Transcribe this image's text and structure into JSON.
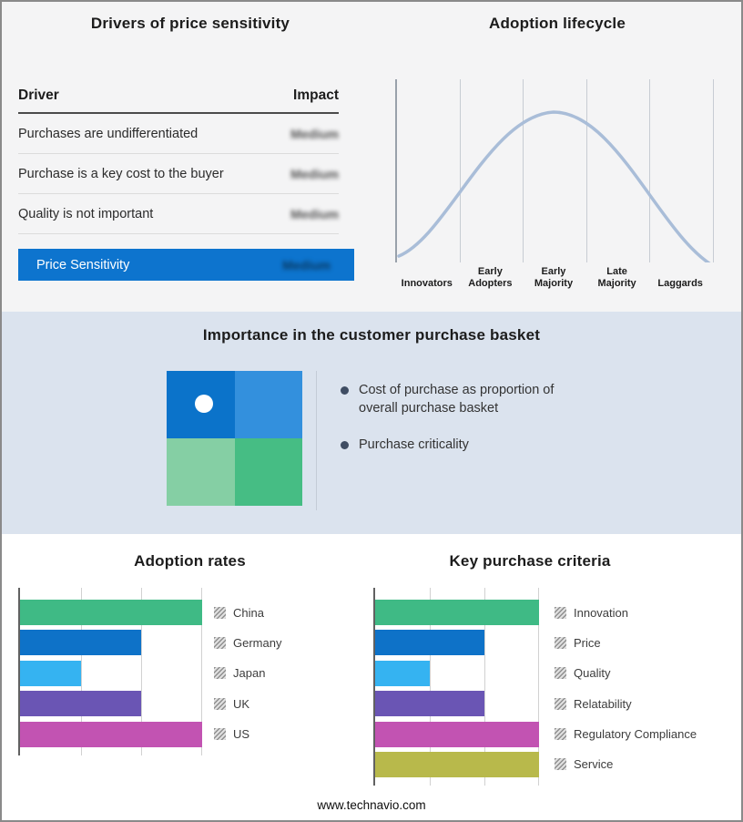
{
  "drivers": {
    "title": "Drivers of price sensitivity",
    "columns": [
      "Driver",
      "Impact"
    ],
    "rows": [
      {
        "driver": "Purchases are undifferentiated",
        "impact": "Medium"
      },
      {
        "driver": "Purchase is a key cost to the buyer",
        "impact": "Medium"
      },
      {
        "driver": "Quality is not important",
        "impact": "Medium"
      }
    ],
    "highlight": {
      "label": "Price Sensitivity",
      "impact": "Medium"
    },
    "highlight_color": "#0d74ce"
  },
  "basket": {
    "title": "Importance in the customer purchase basket",
    "bullets": [
      "Cost of purchase as proportion of overall purchase basket",
      "Purchase criticality"
    ],
    "quadrant_colors": [
      "#0b73ca",
      "#3390dd",
      "#85cfa4",
      "#46bd84"
    ],
    "marker": "white dot in top-left quadrant"
  },
  "icons": {
    "legend_swatch": "hatched-square",
    "bullet_marker": "filled-circle"
  },
  "footer": {
    "text": "www.technavio.com"
  },
  "chart_data": [
    {
      "type": "line",
      "title": "Adoption lifecycle",
      "x": [
        "Innovators",
        "Early Adopters",
        "Early Majority",
        "Late Majority",
        "Laggards"
      ],
      "y": [
        0.05,
        0.55,
        1.0,
        0.55,
        0.05
      ],
      "note": "bell-shaped adoption curve peaking at Early Majority",
      "curve_color": "#a9bdd8",
      "grid": true,
      "legend_position": "none"
    },
    {
      "type": "bar",
      "title": "Adoption rates",
      "orientation": "horizontal",
      "categories": [
        "China",
        "Germany",
        "Japan",
        "UK",
        "US"
      ],
      "values": [
        3,
        2,
        1,
        2,
        3
      ],
      "xlim": [
        0,
        3
      ],
      "colors": [
        "#3fba85",
        "#0e72c8",
        "#35b3f1",
        "#6a55b4",
        "#c253b2"
      ],
      "grid": true,
      "legend_position": "right"
    },
    {
      "type": "bar",
      "title": "Key purchase criteria",
      "orientation": "horizontal",
      "categories": [
        "Innovation",
        "Price",
        "Quality",
        "Relatability",
        "Regulatory Compliance",
        "Service"
      ],
      "values": [
        3,
        2,
        1,
        2,
        3,
        3
      ],
      "xlim": [
        0,
        3
      ],
      "colors": [
        "#3fba85",
        "#0e72c8",
        "#35b3f1",
        "#6a55b4",
        "#c253b2",
        "#b8b94b"
      ],
      "grid": true,
      "legend_position": "right"
    }
  ]
}
